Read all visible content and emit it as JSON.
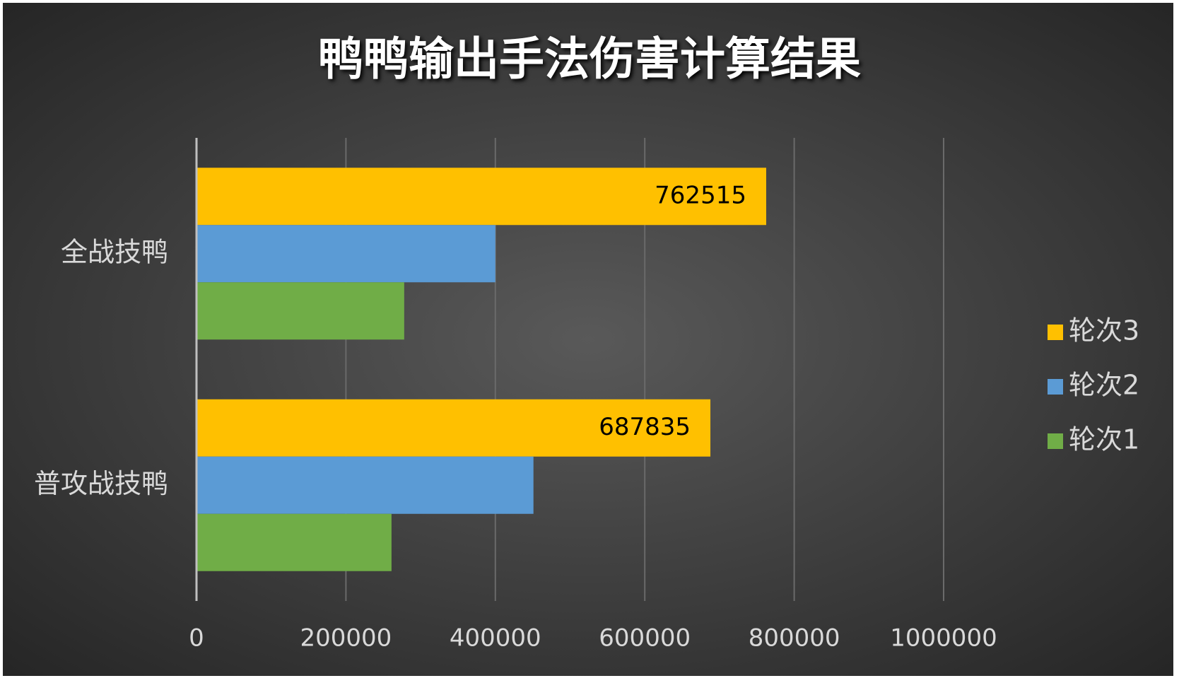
{
  "chart_data": {
    "type": "hbar",
    "title": "鸭鸭输出手法伤害计算结果",
    "categories": [
      "全战技鸭",
      "普攻战技鸭"
    ],
    "series": [
      {
        "name": "轮次3",
        "color": "#ffc000",
        "values": [
          762515,
          687835
        ],
        "labels": true
      },
      {
        "name": "轮次2",
        "color": "#5b9bd5",
        "values": [
          400000,
          451000
        ]
      },
      {
        "name": "轮次1",
        "color": "#70ad47",
        "values": [
          278000,
          261000
        ]
      }
    ],
    "xlim": [
      0,
      1000000
    ],
    "xticks": [
      0,
      200000,
      400000,
      600000,
      800000,
      1000000
    ],
    "grid": true,
    "legend": "right"
  }
}
